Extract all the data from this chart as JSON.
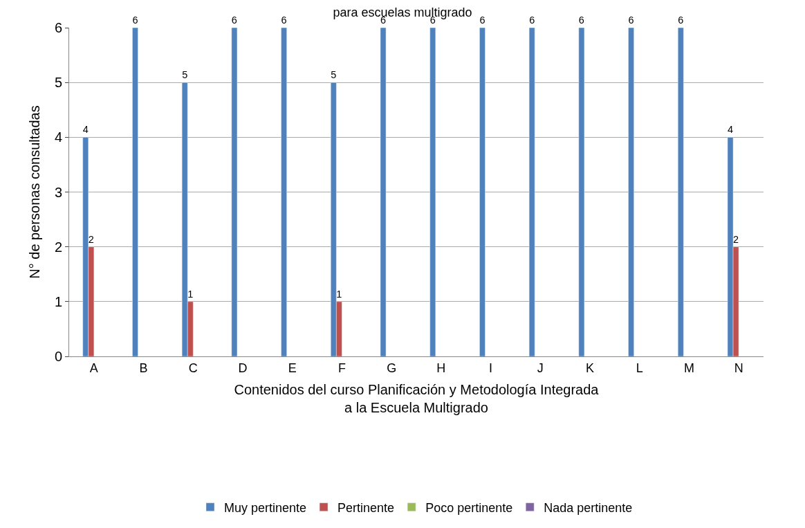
{
  "chart_data": {
    "type": "bar",
    "title": "para escuelas multigrado",
    "xlabel": "Contenidos del curso Planificación y Metodología Integrada\na la Escuela Multigrado",
    "ylabel": "N° de personas consultadas",
    "categories": [
      "A",
      "B",
      "C",
      "D",
      "E",
      "F",
      "G",
      "H",
      "I",
      "J",
      "K",
      "L",
      "M",
      "N"
    ],
    "series": [
      {
        "name": "Muy pertinente",
        "color": "#4f81bd",
        "values": [
          4,
          6,
          5,
          6,
          6,
          5,
          6,
          6,
          6,
          6,
          6,
          6,
          6,
          4
        ],
        "value_labels": [
          "4",
          "6",
          "5",
          "6",
          "6",
          "5",
          "6",
          "6",
          "6",
          "6",
          "6",
          "6",
          "6",
          "4"
        ]
      },
      {
        "name": "Pertinente",
        "color": "#c0504d",
        "values": [
          2,
          null,
          1,
          null,
          null,
          1,
          null,
          null,
          null,
          null,
          null,
          null,
          null,
          2
        ],
        "value_labels": [
          "2",
          null,
          "1",
          null,
          null,
          "1",
          null,
          null,
          null,
          null,
          null,
          null,
          null,
          "2"
        ]
      },
      {
        "name": "Poco pertinente",
        "color": "#9bbb59",
        "values": [
          null,
          null,
          null,
          null,
          null,
          null,
          null,
          null,
          null,
          null,
          null,
          null,
          null,
          null
        ]
      },
      {
        "name": "Nada pertinente",
        "color": "#8064a2",
        "values": [
          null,
          null,
          null,
          null,
          null,
          null,
          null,
          null,
          null,
          null,
          null,
          null,
          null,
          null
        ]
      }
    ],
    "ylim": [
      0,
      6
    ],
    "yticks": [
      0,
      1,
      2,
      3,
      4,
      5,
      6
    ],
    "grid": "y",
    "legend": "bottom"
  }
}
